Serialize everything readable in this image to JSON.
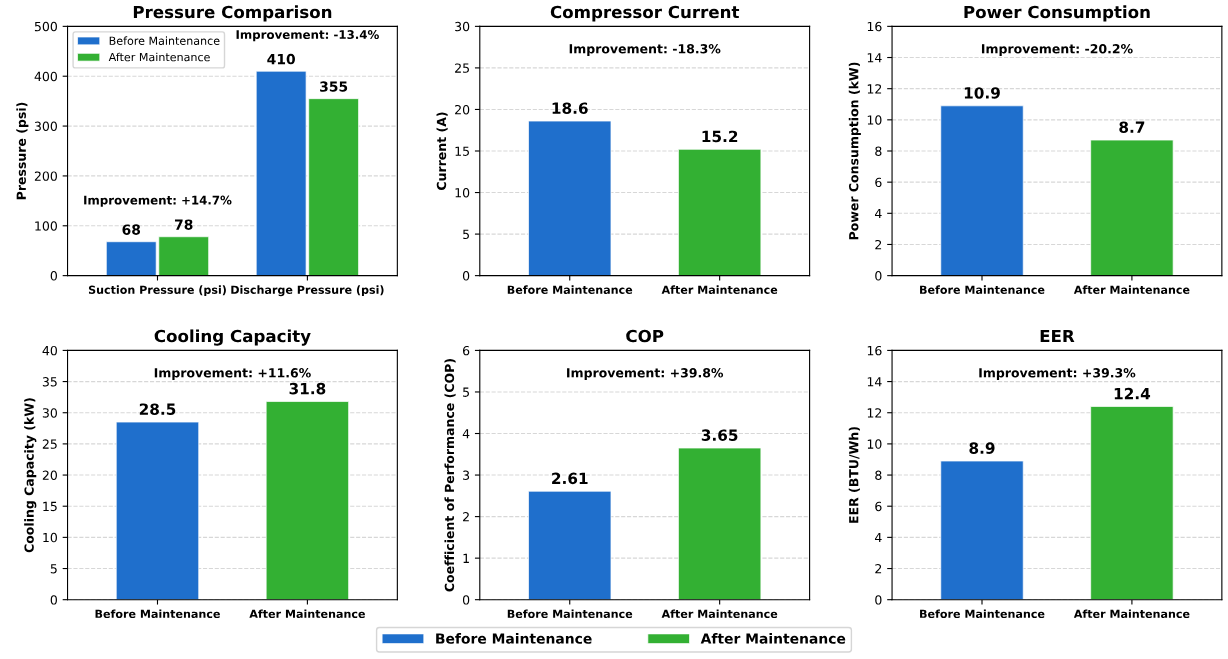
{
  "chart_data": [
    {
      "type": "bar",
      "title": "Pressure Comparison",
      "ylabel": "Pressure (psi)",
      "categories": [
        "Suction Pressure (psi)",
        "Discharge Pressure (psi)"
      ],
      "series": [
        {
          "name": "Before Maintenance",
          "color": "#1f6fcc",
          "values": [
            68,
            410
          ]
        },
        {
          "name": "After Maintenance",
          "color": "#33b033",
          "values": [
            78,
            355
          ]
        }
      ],
      "ylim": [
        0,
        500
      ],
      "yticks": [
        0,
        100,
        200,
        300,
        400,
        500
      ],
      "grid": "y",
      "legend": "top left",
      "data_labels": true,
      "annotations": [
        "Improvement: +14.7%",
        "Improvement: -13.4%"
      ]
    },
    {
      "type": "bar",
      "title": "Compressor Current",
      "ylabel": "Current (A)",
      "categories": [
        "Before Maintenance",
        "After Maintenance"
      ],
      "values": [
        18.6,
        15.2
      ],
      "colors": [
        "#1f6fcc",
        "#33b033"
      ],
      "ylim": [
        0,
        30
      ],
      "yticks": [
        0,
        5,
        10,
        15,
        20,
        25,
        30
      ],
      "grid": "y",
      "data_labels": true,
      "annotations": [
        "Improvement: -18.3%"
      ]
    },
    {
      "type": "bar",
      "title": "Power Consumption",
      "ylabel": "Power Consumption (kW)",
      "categories": [
        "Before Maintenance",
        "After Maintenance"
      ],
      "values": [
        10.9,
        8.7
      ],
      "colors": [
        "#1f6fcc",
        "#33b033"
      ],
      "ylim": [
        0,
        16
      ],
      "yticks": [
        0,
        2,
        4,
        6,
        8,
        10,
        12,
        14,
        16
      ],
      "grid": "y",
      "data_labels": true,
      "annotations": [
        "Improvement: -20.2%"
      ]
    },
    {
      "type": "bar",
      "title": "Cooling Capacity",
      "ylabel": "Cooling Capacity (kW)",
      "categories": [
        "Before Maintenance",
        "After Maintenance"
      ],
      "values": [
        28.5,
        31.8
      ],
      "colors": [
        "#1f6fcc",
        "#33b033"
      ],
      "ylim": [
        0,
        40
      ],
      "yticks": [
        0,
        5,
        10,
        15,
        20,
        25,
        30,
        35,
        40
      ],
      "grid": "y",
      "data_labels": true,
      "annotations": [
        "Improvement: +11.6%"
      ]
    },
    {
      "type": "bar",
      "title": "COP",
      "ylabel": "Coefficient of Performance (COP)",
      "categories": [
        "Before Maintenance",
        "After Maintenance"
      ],
      "values": [
        2.61,
        3.65
      ],
      "colors": [
        "#1f6fcc",
        "#33b033"
      ],
      "ylim": [
        0,
        6
      ],
      "yticks": [
        0,
        1,
        2,
        3,
        4,
        5,
        6
      ],
      "grid": "y",
      "data_labels": true,
      "annotations": [
        "Improvement: +39.8%"
      ]
    },
    {
      "type": "bar",
      "title": "EER",
      "ylabel": "EER (BTU/Wh)",
      "categories": [
        "Before Maintenance",
        "After Maintenance"
      ],
      "stacked": true,
      "series": [
        {
          "name": "Before Maintenance",
          "color": "#1f6fcc",
          "values": [
            8.9,
            null
          ]
        },
        {
          "name": "After Maintenance",
          "color": "#33b033",
          "values": [
            null,
            12.4
          ]
        }
      ],
      "ylim": [
        0,
        16
      ],
      "yticks": [
        0,
        2,
        4,
        6,
        8,
        10,
        12,
        14,
        16
      ],
      "grid": "y",
      "data_labels": true,
      "legend": "bottom",
      "annotations": [
        "Improvement: +39.3%"
      ]
    }
  ]
}
